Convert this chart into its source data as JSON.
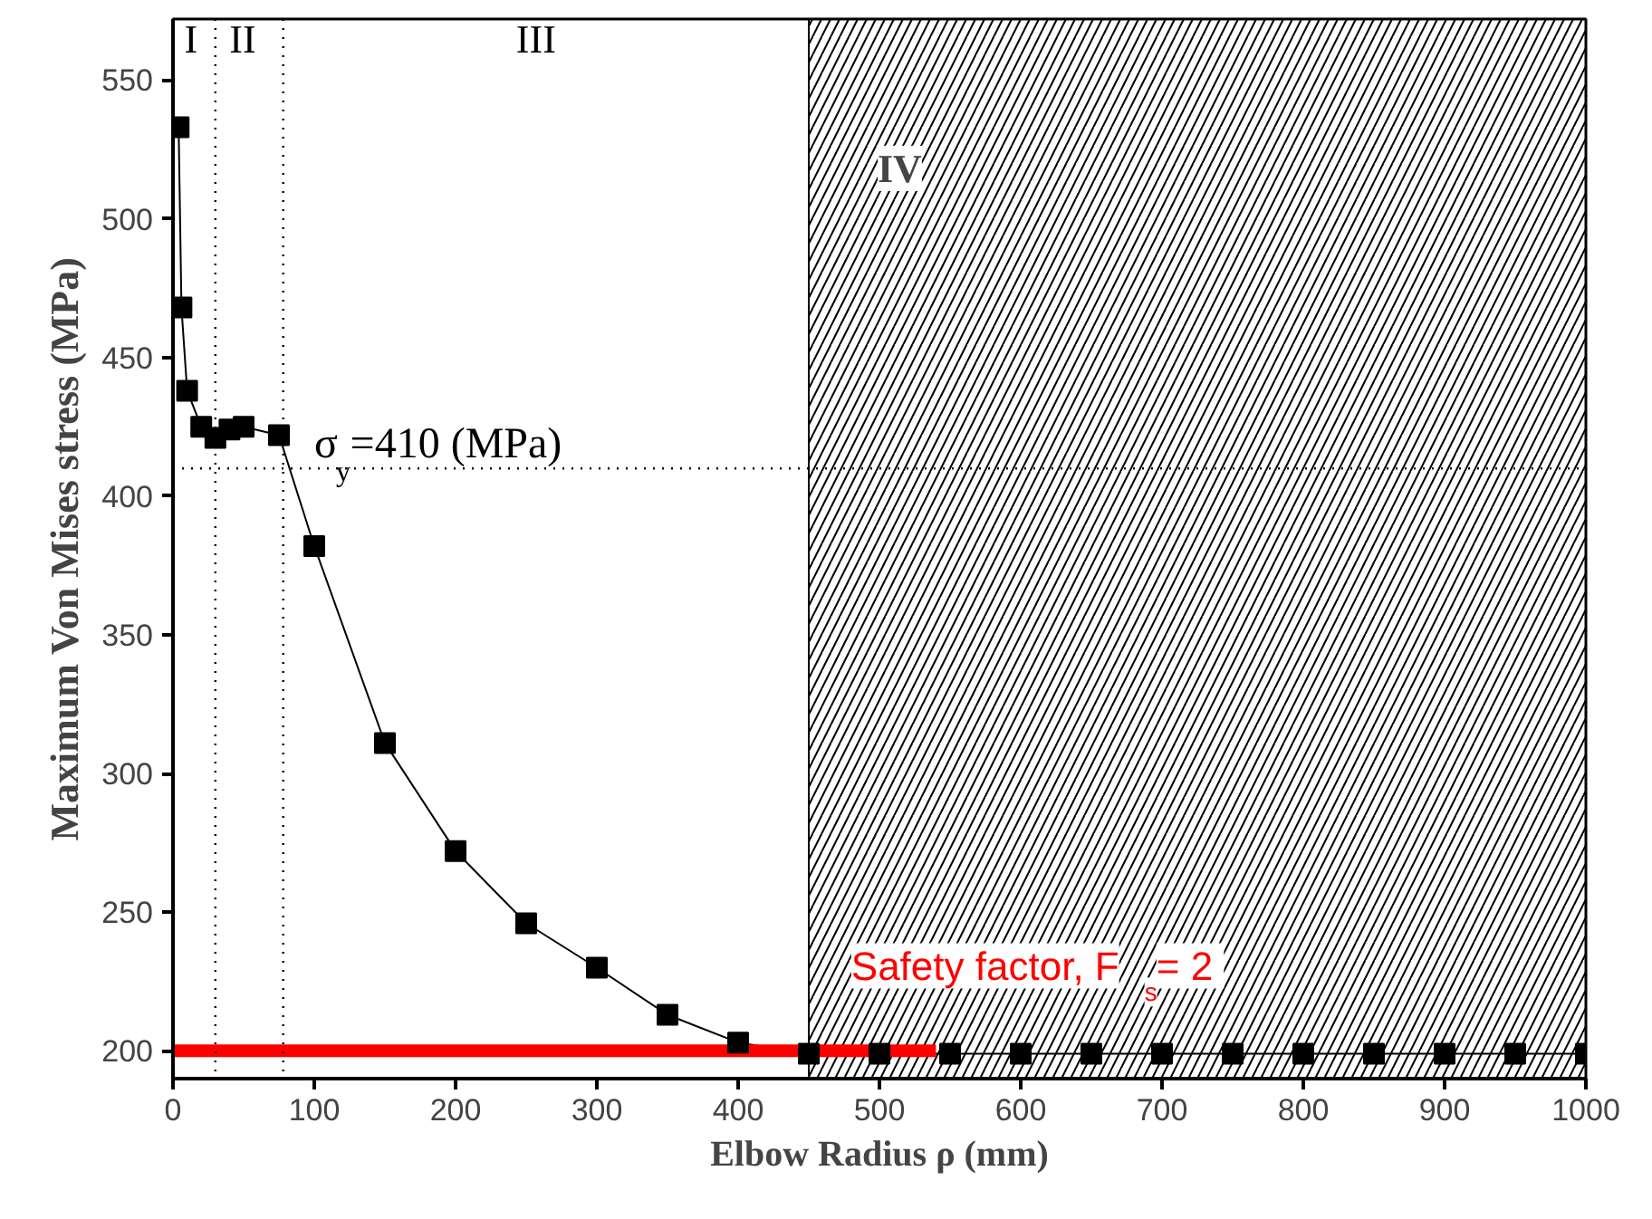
{
  "chart_data": {
    "type": "line",
    "xlabel": "Elbow Radius ρ (mm)",
    "ylabel": "Maximum Von Mises stress (MPa)",
    "x": [
      4,
      6,
      10,
      20,
      30,
      40,
      50,
      75,
      100,
      150,
      200,
      250,
      300,
      350,
      400,
      450,
      500,
      550,
      600,
      650,
      700,
      750,
      800,
      850,
      900,
      950,
      1000
    ],
    "series": [
      {
        "color": "#000000",
        "marker": "square",
        "values": [
          533,
          468,
          438,
          425,
          421,
          424,
          425,
          422,
          382,
          311,
          272,
          246,
          230,
          213,
          203,
          199,
          199,
          199,
          199,
          199,
          199,
          199,
          199,
          199,
          199,
          199,
          199
        ]
      },
      {
        "type": "line",
        "color": "#ff0000",
        "marker": "none",
        "x": [
          0,
          540
        ],
        "values": [
          200,
          200
        ]
      }
    ],
    "xlim": [
      0,
      1000
    ],
    "xticks": [
      0,
      100,
      200,
      300,
      400,
      500,
      600,
      700,
      800,
      900,
      1000
    ],
    "ylim": [
      190,
      572
    ],
    "yticks": [
      200,
      250,
      300,
      350,
      400,
      450,
      500,
      550
    ],
    "grid": false,
    "ref_lines": [
      {
        "axis": "y",
        "value": 410,
        "label": "σ$_{y}$=410 (MPa)",
        "line_style": "dotted",
        "color": "#000000"
      },
      {
        "axis": "x",
        "value": 30,
        "line_style": "dotted",
        "color": "#000000"
      },
      {
        "axis": "x",
        "value": 78,
        "line_style": "dotted",
        "color": "#000000"
      }
    ],
    "bands": [
      {
        "axis": "x",
        "from": 450,
        "to": 1000,
        "label": "IV",
        "color": "#000000"
      }
    ],
    "annotations": [
      "I",
      "II",
      "III",
      "Safety factor, F$_{s}$ = 2"
    ]
  }
}
